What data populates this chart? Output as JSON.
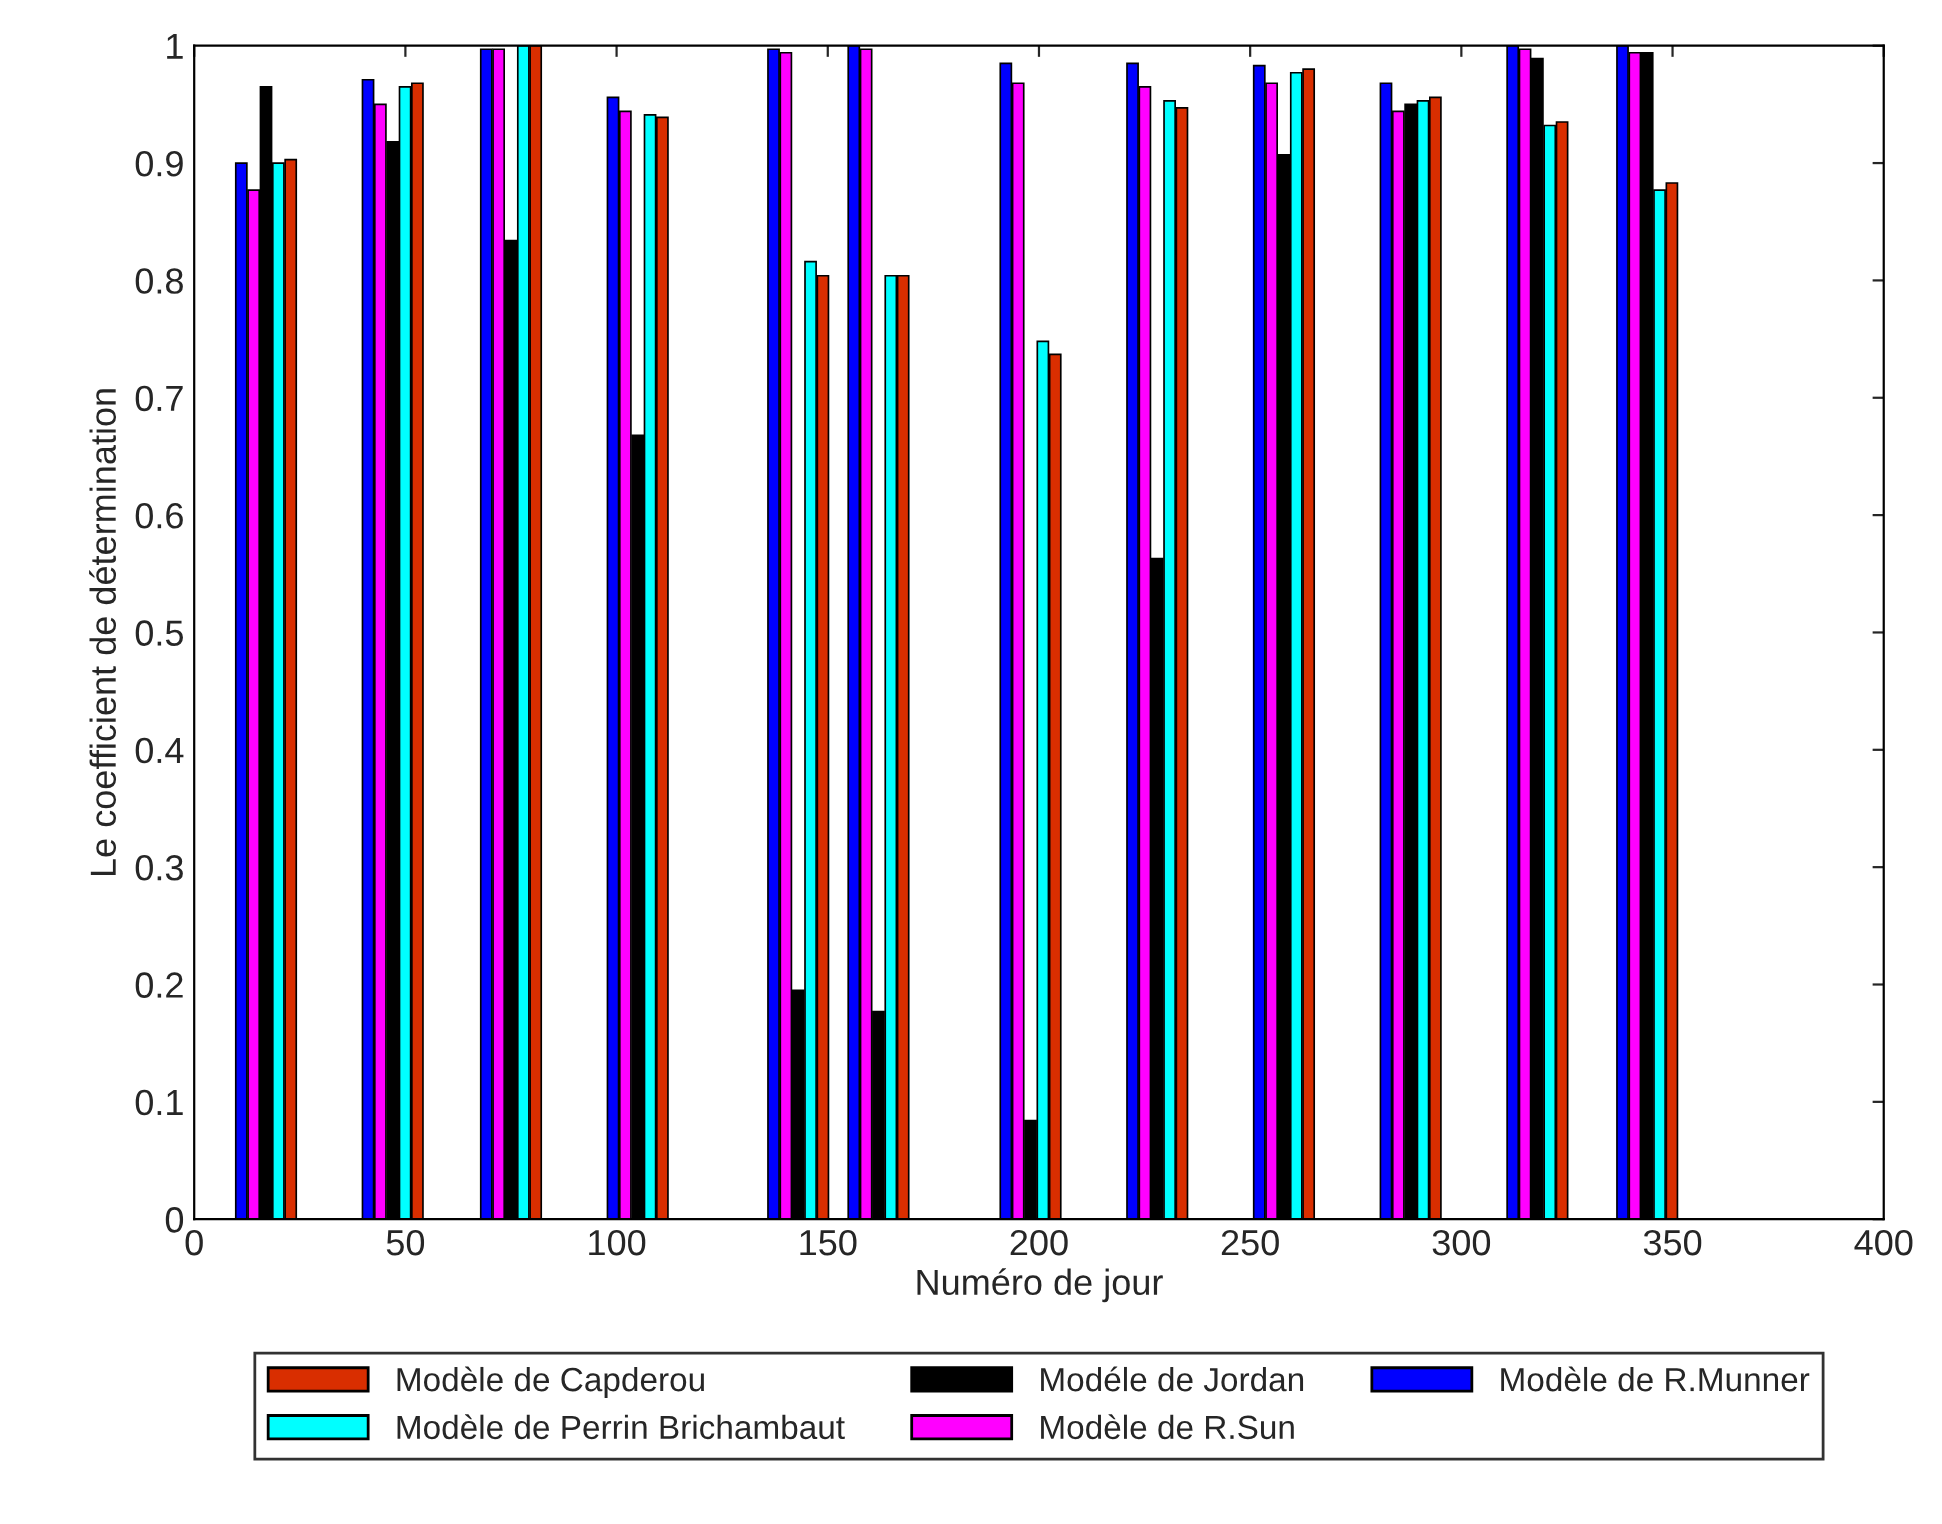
{
  "chart_data": {
    "type": "bar",
    "xlabel": "Numéro de jour",
    "ylabel": "Le coefficient de détermination",
    "x": [
      17,
      47,
      75,
      105,
      143,
      162,
      198,
      228,
      258,
      288,
      318,
      344
    ],
    "series": [
      {
        "name": "Modèle de R.Munner",
        "color": "#0000ff",
        "values": [
          0.9,
          0.971,
          0.997,
          0.956,
          0.997,
          1.0,
          0.985,
          0.985,
          0.983,
          0.968,
          1.0,
          1.0
        ]
      },
      {
        "name": "Modèle de R.Sun",
        "color": "#ff00ff",
        "values": [
          0.877,
          0.95,
          0.997,
          0.944,
          0.994,
          0.997,
          0.968,
          0.965,
          0.968,
          0.944,
          0.997,
          0.994
        ]
      },
      {
        "name": "Modéle de Jordan",
        "color": "#000000",
        "values": [
          0.965,
          0.918,
          0.834,
          0.668,
          0.195,
          0.177,
          0.084,
          0.563,
          0.907,
          0.95,
          0.989,
          0.994
        ]
      },
      {
        "name": "Modèle de Perrin Brichambaut",
        "color": "#00ffff",
        "values": [
          0.9,
          0.965,
          1.0,
          0.941,
          0.816,
          0.804,
          0.748,
          0.953,
          0.977,
          0.953,
          0.932,
          0.877
        ]
      },
      {
        "name": "Modèle de Capderou",
        "color": "#d92e00",
        "values": [
          0.903,
          0.968,
          1.0,
          0.939,
          0.804,
          0.804,
          0.737,
          0.947,
          0.98,
          0.956,
          0.935,
          0.883
        ]
      }
    ],
    "xlim": [
      0,
      400
    ],
    "xticks": [
      0,
      50,
      100,
      150,
      200,
      250,
      300,
      350,
      400
    ],
    "ylim": [
      0,
      1
    ],
    "yticks": [
      0,
      0.1,
      0.2,
      0.3,
      0.4,
      0.5,
      0.6,
      0.7,
      0.8,
      0.9,
      1
    ],
    "legend": "bottom",
    "grid": false
  }
}
